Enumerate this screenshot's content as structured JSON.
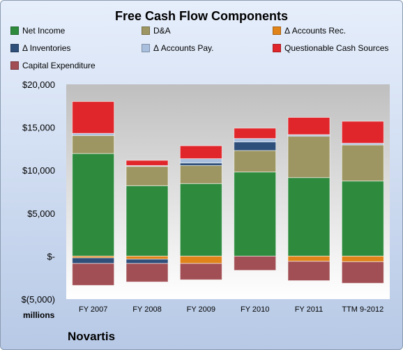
{
  "chart_data": {
    "type": "bar",
    "stacked": true,
    "title": "Free Cash Flow Components",
    "unit_label": "millions",
    "company": "Novartis",
    "categories": [
      "FY 2007",
      "FY 2008",
      "FY 2009",
      "FY 2010",
      "FY 2011",
      "TTM 9-2012"
    ],
    "y_ticks": [
      "$20,000",
      "$15,000",
      "$10,000",
      "$5,000",
      "$-",
      "$(5,000)"
    ],
    "ylim": [
      -5000,
      20000
    ],
    "grid": false,
    "legend_position": "top",
    "series": [
      {
        "name": "Net Income",
        "color": "#2e8b3e",
        "values": [
          11950,
          8200,
          8450,
          9800,
          9150,
          8750
        ]
      },
      {
        "name": "D&A",
        "color": "#9e9662",
        "values": [
          2100,
          2250,
          2100,
          2500,
          4800,
          4200
        ]
      },
      {
        "name": "Δ Accounts Rec.",
        "color": "#e0841a",
        "values": [
          -200,
          -350,
          -850,
          0,
          -600,
          -650
        ]
      },
      {
        "name": "Δ Inventories",
        "color": "#2e4f7a",
        "values": [
          -650,
          -500,
          300,
          1000,
          100,
          0
        ]
      },
      {
        "name": "Δ Accounts Pay.",
        "color": "#a8bfde",
        "values": [
          250,
          100,
          500,
          400,
          100,
          200
        ]
      },
      {
        "name": "Questionable Cash Sources",
        "color": "#e0262b",
        "values": [
          3700,
          600,
          1500,
          1200,
          2000,
          2550
        ]
      },
      {
        "name": "Capital Expenditure",
        "color": "#a14f54",
        "values": [
          -2550,
          -2150,
          -1900,
          -1650,
          -2250,
          -2500
        ]
      }
    ]
  }
}
